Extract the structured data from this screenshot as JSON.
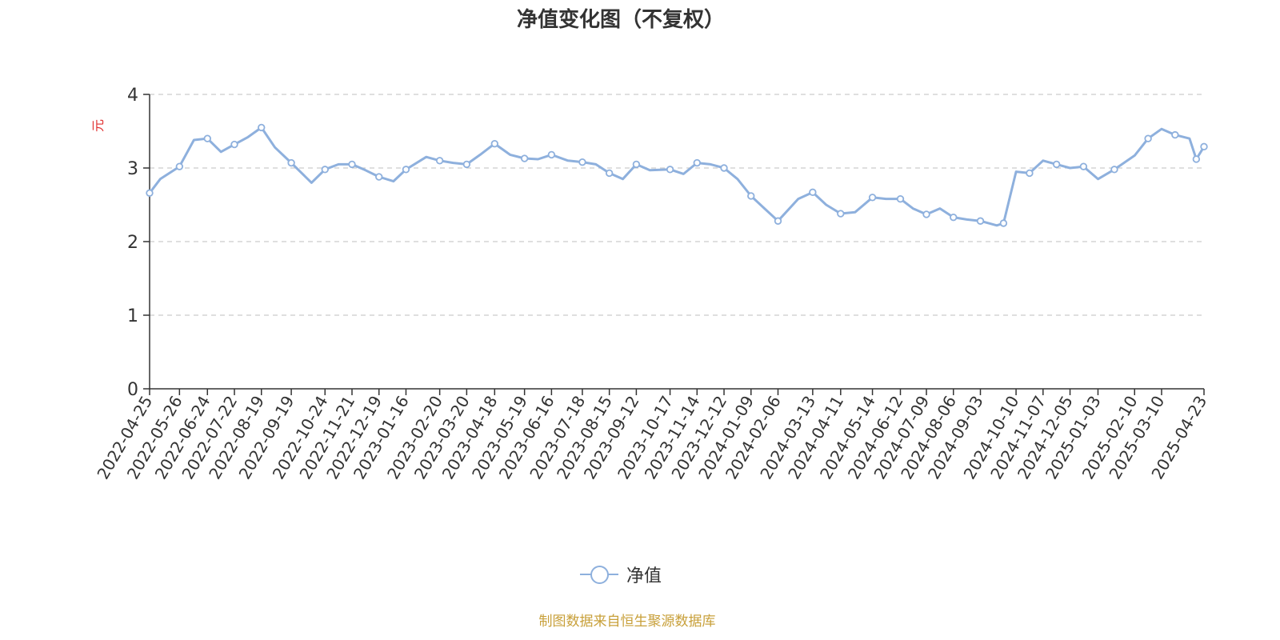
{
  "chart_data": {
    "type": "line",
    "title": "净值变化图（不复权）",
    "ylabel": "元",
    "ylim": [
      0,
      4
    ],
    "yticks": [
      0,
      1,
      2,
      3,
      4
    ],
    "grid": true,
    "legend_position": "bottom-center",
    "colors": {
      "line": "#8eb0dd",
      "title": "#333333",
      "ylabel": "#e03030",
      "source": "#c8a03a",
      "grid": "#cccccc"
    },
    "x_tick_labels": [
      "2022-04-25",
      "2022-05-26",
      "2022-06-24",
      "2022-07-22",
      "2022-08-19",
      "2022-09-19",
      "2022-10-24",
      "2022-11-21",
      "2022-12-19",
      "2023-01-16",
      "2023-02-20",
      "2023-03-20",
      "2023-04-18",
      "2023-05-19",
      "2023-06-16",
      "2023-07-18",
      "2023-08-15",
      "2023-09-12",
      "2023-10-17",
      "2023-11-14",
      "2023-12-12",
      "2024-01-09",
      "2024-02-06",
      "2024-03-13",
      "2024-04-11",
      "2024-05-14",
      "2024-06-12",
      "2024-07-09",
      "2024-08-06",
      "2024-09-03",
      "2024-10-10",
      "2024-11-07",
      "2024-12-05",
      "2025-01-03",
      "2025-02-10",
      "2025-03-10",
      "2025-04-23"
    ],
    "series": [
      {
        "name": "净值",
        "x": [
          "2022-04-25",
          "2022-05-06",
          "2022-05-26",
          "2022-06-10",
          "2022-06-24",
          "2022-07-08",
          "2022-07-22",
          "2022-08-05",
          "2022-08-19",
          "2022-09-02",
          "2022-09-19",
          "2022-10-10",
          "2022-10-24",
          "2022-11-07",
          "2022-11-21",
          "2022-12-05",
          "2022-12-19",
          "2023-01-03",
          "2023-01-16",
          "2023-02-06",
          "2023-02-20",
          "2023-03-06",
          "2023-03-20",
          "2023-04-03",
          "2023-04-18",
          "2023-05-04",
          "2023-05-19",
          "2023-06-02",
          "2023-06-16",
          "2023-07-03",
          "2023-07-18",
          "2023-08-01",
          "2023-08-15",
          "2023-08-29",
          "2023-09-12",
          "2023-09-26",
          "2023-10-17",
          "2023-10-31",
          "2023-11-14",
          "2023-11-28",
          "2023-12-12",
          "2023-12-26",
          "2024-01-09",
          "2024-01-23",
          "2024-02-06",
          "2024-02-27",
          "2024-03-13",
          "2024-03-27",
          "2024-04-11",
          "2024-04-26",
          "2024-05-14",
          "2024-05-28",
          "2024-06-12",
          "2024-06-25",
          "2024-07-09",
          "2024-07-23",
          "2024-08-06",
          "2024-08-20",
          "2024-09-03",
          "2024-09-20",
          "2024-09-27",
          "2024-10-10",
          "2024-10-24",
          "2024-11-07",
          "2024-11-21",
          "2024-12-05",
          "2024-12-19",
          "2025-01-03",
          "2025-01-20",
          "2025-02-10",
          "2025-02-24",
          "2025-03-10",
          "2025-03-24",
          "2025-04-08",
          "2025-04-15",
          "2025-04-23"
        ],
        "values": [
          2.66,
          2.85,
          3.02,
          3.38,
          3.4,
          3.22,
          3.32,
          3.42,
          3.55,
          3.28,
          3.07,
          2.8,
          2.98,
          3.05,
          3.05,
          2.97,
          2.88,
          2.82,
          2.98,
          3.15,
          3.1,
          3.07,
          3.05,
          3.18,
          3.33,
          3.18,
          3.13,
          3.12,
          3.18,
          3.1,
          3.08,
          3.05,
          2.93,
          2.85,
          3.05,
          2.97,
          2.98,
          2.92,
          3.07,
          3.05,
          3.0,
          2.85,
          2.62,
          2.45,
          2.28,
          2.58,
          2.67,
          2.5,
          2.38,
          2.4,
          2.6,
          2.58,
          2.58,
          2.45,
          2.37,
          2.45,
          2.33,
          2.3,
          2.28,
          2.22,
          2.25,
          2.95,
          2.93,
          3.1,
          3.05,
          3.0,
          3.02,
          2.85,
          2.98,
          3.17,
          3.4,
          3.53,
          3.45,
          3.4,
          3.12,
          3.29
        ]
      }
    ]
  },
  "legend": {
    "label": "净值"
  },
  "source": "制图数据来自恒生聚源数据库"
}
